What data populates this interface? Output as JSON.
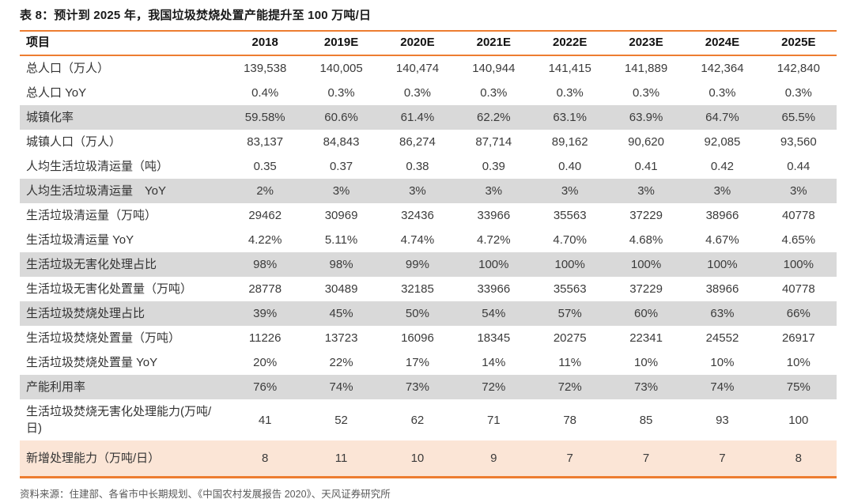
{
  "title": "表 8：预计到 2025 年，我国垃圾焚烧处置产能提升至 100 万吨/日",
  "source": "资料来源：住建部、各省市中长期规划、《中国农村发展报告 2020》、天风证券研究所",
  "colors": {
    "accent_orange": "#ED7D31",
    "row_gray": "#D9D9D9",
    "row_peach": "#FBE5D6",
    "title_text": "#1a1a1a",
    "body_text": "#3b3b3b",
    "source_text": "#595959"
  },
  "chart_data": {
    "type": "table",
    "title": "预计到 2025 年，我国垃圾焚烧处置产能提升至 100 万吨/日",
    "columns": [
      "项目",
      "2018",
      "2019E",
      "2020E",
      "2021E",
      "2022E",
      "2023E",
      "2024E",
      "2025E"
    ],
    "rows": [
      {
        "label": "总人口（万人）",
        "shade": "none",
        "values": [
          "139,538",
          "140,005",
          "140,474",
          "140,944",
          "141,415",
          "141,889",
          "142,364",
          "142,840"
        ]
      },
      {
        "label": "总人口 YoY",
        "shade": "none",
        "values": [
          "0.4%",
          "0.3%",
          "0.3%",
          "0.3%",
          "0.3%",
          "0.3%",
          "0.3%",
          "0.3%"
        ]
      },
      {
        "label": "城镇化率",
        "shade": "gray",
        "values": [
          "59.58%",
          "60.6%",
          "61.4%",
          "62.2%",
          "63.1%",
          "63.9%",
          "64.7%",
          "65.5%"
        ]
      },
      {
        "label": "城镇人口（万人）",
        "shade": "none",
        "values": [
          "83,137",
          "84,843",
          "86,274",
          "87,714",
          "89,162",
          "90,620",
          "92,085",
          "93,560"
        ]
      },
      {
        "label": "人均生活垃圾清运量（吨）",
        "shade": "none",
        "values": [
          "0.35",
          "0.37",
          "0.38",
          "0.39",
          "0.40",
          "0.41",
          "0.42",
          "0.44"
        ]
      },
      {
        "label": "人均生活垃圾清运量　YoY",
        "shade": "gray",
        "values": [
          "2%",
          "3%",
          "3%",
          "3%",
          "3%",
          "3%",
          "3%",
          "3%"
        ]
      },
      {
        "label": "生活垃圾清运量（万吨）",
        "shade": "none",
        "values": [
          "29462",
          "30969",
          "32436",
          "33966",
          "35563",
          "37229",
          "38966",
          "40778"
        ]
      },
      {
        "label": "生活垃圾清运量 YoY",
        "shade": "none",
        "values": [
          "4.22%",
          "5.11%",
          "4.74%",
          "4.72%",
          "4.70%",
          "4.68%",
          "4.67%",
          "4.65%"
        ]
      },
      {
        "label": "生活垃圾无害化处理占比",
        "shade": "gray",
        "values": [
          "98%",
          "98%",
          "99%",
          "100%",
          "100%",
          "100%",
          "100%",
          "100%"
        ]
      },
      {
        "label": "生活垃圾无害化处置量（万吨）",
        "shade": "none",
        "values": [
          "28778",
          "30489",
          "32185",
          "33966",
          "35563",
          "37229",
          "38966",
          "40778"
        ]
      },
      {
        "label": "生活垃圾焚烧处理占比",
        "shade": "gray",
        "values": [
          "39%",
          "45%",
          "50%",
          "54%",
          "57%",
          "60%",
          "63%",
          "66%"
        ]
      },
      {
        "label": "生活垃圾焚烧处置量（万吨）",
        "shade": "none",
        "values": [
          "11226",
          "13723",
          "16096",
          "18345",
          "20275",
          "22341",
          "24552",
          "26917"
        ]
      },
      {
        "label": "生活垃圾焚烧处置量 YoY",
        "shade": "none",
        "values": [
          "20%",
          "22%",
          "17%",
          "14%",
          "11%",
          "10%",
          "10%",
          "10%"
        ]
      },
      {
        "label": "产能利用率",
        "shade": "gray",
        "values": [
          "76%",
          "74%",
          "73%",
          "72%",
          "72%",
          "73%",
          "74%",
          "75%"
        ]
      },
      {
        "label": "生活垃圾焚烧无害化处理能力(万吨/日)",
        "shade": "none",
        "values": [
          "41",
          "52",
          "62",
          "71",
          "78",
          "85",
          "93",
          "100"
        ]
      },
      {
        "label": "新增处理能力（万吨/日）",
        "shade": "peach",
        "values": [
          "8",
          "11",
          "10",
          "9",
          "7",
          "7",
          "7",
          "8"
        ]
      }
    ]
  }
}
